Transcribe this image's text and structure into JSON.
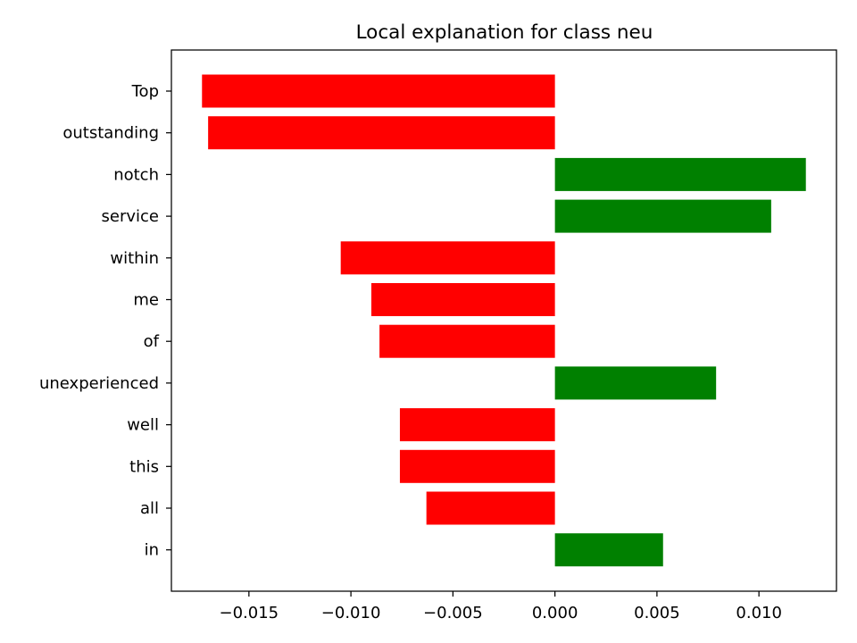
{
  "chart_data": {
    "type": "bar",
    "orientation": "horizontal",
    "title": "Local explanation for class neu",
    "xlabel": "",
    "ylabel": "",
    "categories": [
      "Top",
      "outstanding",
      "notch",
      "service",
      "within",
      "me",
      "of",
      "unexperienced",
      "well",
      "this",
      "all",
      "in"
    ],
    "values": [
      -0.0173,
      -0.017,
      0.0123,
      0.0106,
      -0.0105,
      -0.009,
      -0.0086,
      0.0079,
      -0.0076,
      -0.0076,
      -0.0063,
      0.0053
    ],
    "xlim": [
      -0.0188,
      0.0138
    ],
    "xticks": [
      -0.015,
      -0.01,
      -0.005,
      0.0,
      0.005,
      0.01
    ],
    "xtick_labels": [
      "−0.015",
      "−0.010",
      "−0.005",
      "0.000",
      "0.005",
      "0.010"
    ],
    "colors": {
      "positive": "#008000",
      "negative": "#ff0000",
      "axes": "#000000",
      "background": "#ffffff"
    },
    "grid": false,
    "legend": "none"
  }
}
